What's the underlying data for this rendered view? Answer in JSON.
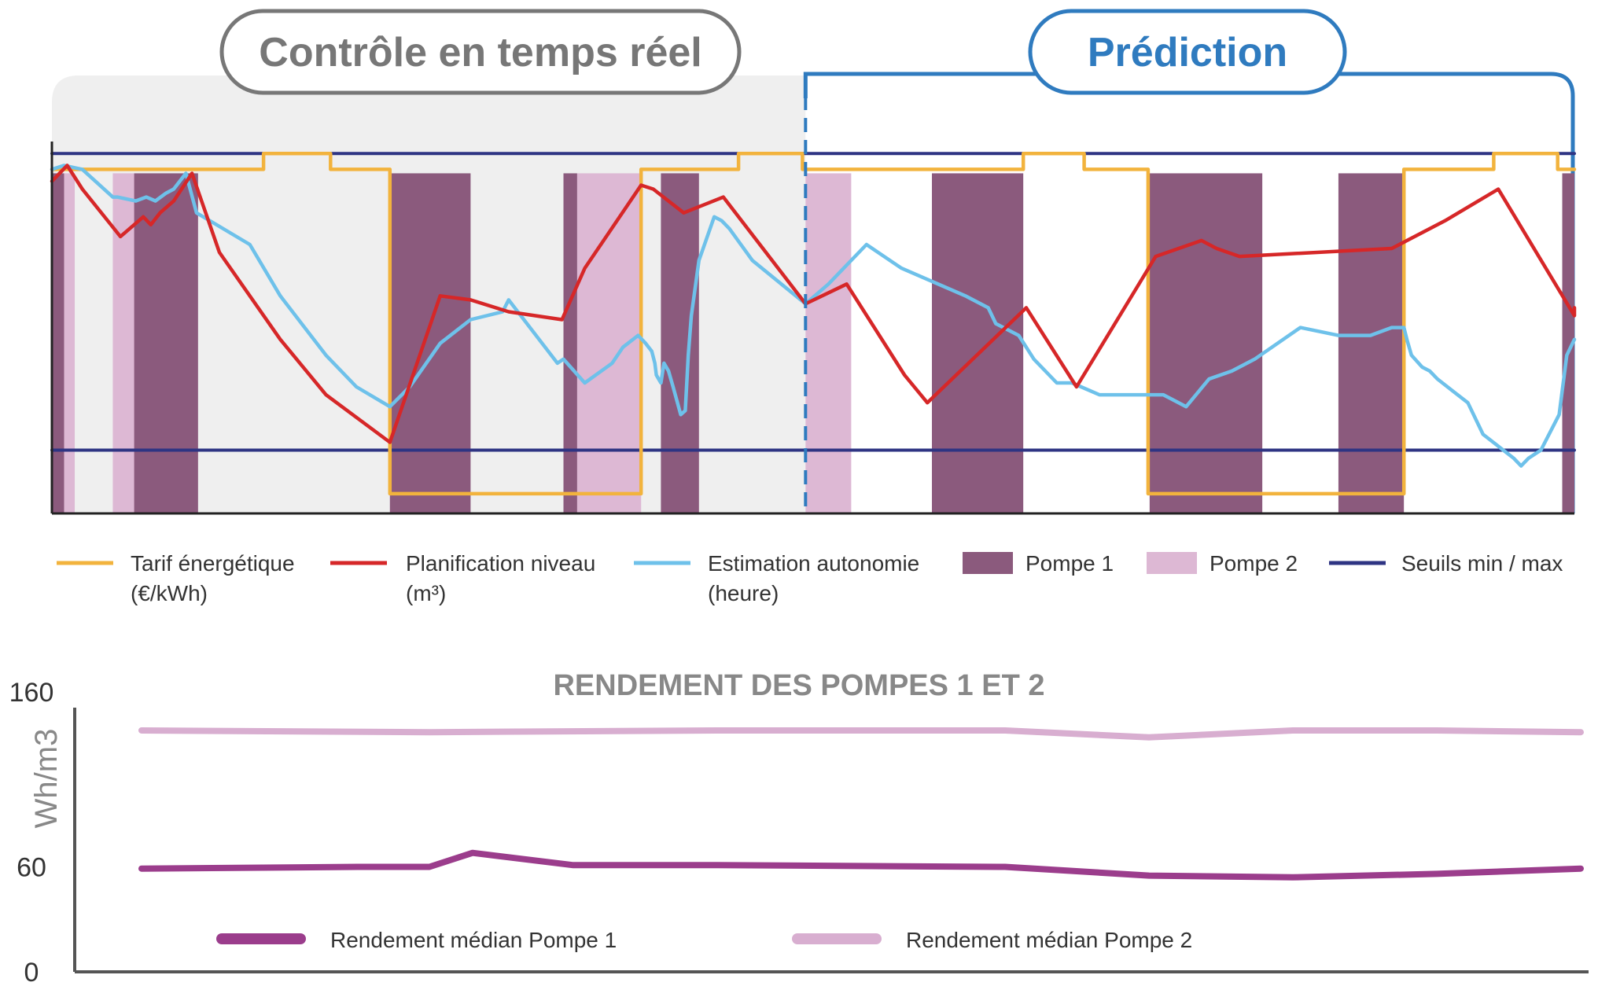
{
  "colors": {
    "tarif": "#f2b33d",
    "planification": "#d62728",
    "estimation": "#6ec1ea",
    "pompe1": "#8b5a7d",
    "pompe2": "#ddb8d4",
    "seuils": "#2e3483",
    "control_bg": "#efefef",
    "control_border": "#777777",
    "prediction_border": "#2f7bbf",
    "rendement_p1": "#9b3d8c",
    "rendement_p2": "#d8aed0"
  },
  "sections": {
    "control_label": "Contrôle en temps réel",
    "prediction_label": "Prédiction"
  },
  "legend": [
    {
      "key": "tarif",
      "line1": "Tarif énergétique",
      "line2": "(€/kWh)",
      "kind": "line"
    },
    {
      "key": "planification",
      "line1": "Planification niveau",
      "line2": "(m³)",
      "kind": "line"
    },
    {
      "key": "estimation",
      "line1": "Estimation autonomie",
      "line2": "(heure)",
      "kind": "line"
    },
    {
      "key": "pompe1",
      "line1": "Pompe 1",
      "line2": "",
      "kind": "box"
    },
    {
      "key": "pompe2",
      "line1": "Pompe 2",
      "line2": "",
      "kind": "box"
    },
    {
      "key": "seuils",
      "line1": "Seuils min / max",
      "line2": "",
      "kind": "line"
    }
  ],
  "chart_data": [
    {
      "type": "line",
      "x_range": [
        0,
        1000
      ],
      "y_range": [
        0,
        100
      ],
      "now_x": 495,
      "series": [
        {
          "key": "tarif",
          "name": "Tarif énergétique (€/kWh)",
          "shape": "step",
          "points": [
            [
              0,
              87
            ],
            [
              139,
              87
            ],
            [
              139,
              91
            ],
            [
              183,
              91
            ],
            [
              183,
              87
            ],
            [
              222,
              87
            ],
            [
              222,
              5
            ],
            [
              387,
              5
            ],
            [
              387,
              87
            ],
            [
              451,
              87
            ],
            [
              451,
              91
            ],
            [
              493,
              91
            ],
            [
              493,
              87
            ],
            [
              638,
              87
            ],
            [
              638,
              91
            ],
            [
              678,
              91
            ],
            [
              678,
              87
            ],
            [
              720,
              87
            ],
            [
              720,
              5
            ],
            [
              888,
              5
            ],
            [
              888,
              87
            ],
            [
              947,
              87
            ],
            [
              947,
              91
            ],
            [
              989,
              91
            ],
            [
              989,
              87
            ],
            [
              1000,
              87
            ]
          ]
        },
        {
          "key": "planification",
          "name": "Planification niveau (m³)",
          "points": [
            [
              0,
              84
            ],
            [
              10,
              88
            ],
            [
              20,
              82
            ],
            [
              45,
              70
            ],
            [
              60,
              75
            ],
            [
              65,
              73
            ],
            [
              71,
              76
            ],
            [
              80,
              79
            ],
            [
              92,
              86
            ],
            [
              110,
              66
            ],
            [
              150,
              44
            ],
            [
              180,
              30
            ],
            [
              222,
              18
            ],
            [
              255,
              55
            ],
            [
              275,
              54
            ],
            [
              300,
              51
            ],
            [
              335,
              49
            ],
            [
              350,
              62
            ],
            [
              387,
              83
            ],
            [
              395,
              82
            ],
            [
              415,
              76
            ],
            [
              441,
              80
            ],
            [
              495,
              53
            ],
            [
              522,
              58
            ],
            [
              560,
              35
            ],
            [
              575,
              28
            ],
            [
              640,
              52
            ],
            [
              673,
              32
            ],
            [
              725,
              65
            ],
            [
              755,
              69
            ],
            [
              765,
              67
            ],
            [
              780,
              65
            ],
            [
              880,
              67
            ],
            [
              915,
              74
            ],
            [
              950,
              82
            ],
            [
              1000,
              50
            ],
            [
              1000,
              52
            ]
          ]
        },
        {
          "key": "estimation",
          "name": "Estimation autonomie (heure)",
          "points": [
            [
              0,
              87
            ],
            [
              8,
              88
            ],
            [
              20,
              87
            ],
            [
              40,
              80
            ],
            [
              43,
              80
            ],
            [
              55,
              79
            ],
            [
              62,
              80
            ],
            [
              68,
              79
            ],
            [
              75,
              81
            ],
            [
              80,
              82
            ],
            [
              88,
              86
            ],
            [
              95,
              76
            ],
            [
              130,
              68
            ],
            [
              150,
              55
            ],
            [
              180,
              40
            ],
            [
              200,
              32
            ],
            [
              222,
              27
            ],
            [
              235,
              32
            ],
            [
              255,
              43
            ],
            [
              275,
              49
            ],
            [
              296,
              51
            ],
            [
              300,
              54
            ],
            [
              332,
              38
            ],
            [
              336,
              39
            ],
            [
              350,
              33
            ],
            [
              368,
              38
            ],
            [
              375,
              42
            ],
            [
              385,
              45
            ],
            [
              390,
              43
            ],
            [
              394,
              41
            ],
            [
              396,
              38
            ],
            [
              397,
              35
            ],
            [
              400,
              33
            ],
            [
              402,
              38
            ],
            [
              405,
              36
            ],
            [
              408,
              32
            ],
            [
              413,
              25
            ],
            [
              416,
              26
            ],
            [
              418,
              40
            ],
            [
              420,
              50
            ],
            [
              425,
              64
            ],
            [
              435,
              75
            ],
            [
              440,
              74
            ],
            [
              445,
              72
            ],
            [
              460,
              64
            ],
            [
              495,
              53
            ],
            [
              510,
              58
            ],
            [
              535,
              68
            ],
            [
              558,
              62
            ],
            [
              600,
              55
            ],
            [
              615,
              52
            ],
            [
              620,
              48
            ],
            [
              635,
              45
            ],
            [
              645,
              39
            ],
            [
              660,
              33
            ],
            [
              670,
              33
            ],
            [
              688,
              30
            ],
            [
              730,
              30
            ],
            [
              745,
              27
            ],
            [
              760,
              34
            ],
            [
              775,
              36
            ],
            [
              790,
              39
            ],
            [
              820,
              47
            ],
            [
              845,
              45
            ],
            [
              866,
              45
            ],
            [
              880,
              47
            ],
            [
              888,
              47
            ],
            [
              890,
              44
            ],
            [
              893,
              40
            ],
            [
              900,
              37
            ],
            [
              905,
              36
            ],
            [
              910,
              34
            ],
            [
              920,
              31
            ],
            [
              930,
              28
            ],
            [
              940,
              20
            ],
            [
              950,
              17
            ],
            [
              960,
              14
            ],
            [
              965,
              12
            ],
            [
              970,
              14
            ],
            [
              978,
              16
            ],
            [
              990,
              25
            ],
            [
              995,
              40
            ],
            [
              1000,
              44
            ]
          ]
        },
        {
          "key": "seuils_max",
          "name": "Seuil max",
          "points": [
            [
              0,
              91
            ],
            [
              1000,
              91
            ]
          ]
        },
        {
          "key": "seuils_min",
          "name": "Seuil min",
          "points": [
            [
              0,
              16
            ],
            [
              1000,
              16
            ]
          ]
        }
      ],
      "bars": {
        "pompe1": [
          [
            0,
            8
          ],
          [
            54,
            96
          ],
          [
            222,
            275
          ],
          [
            336,
            345
          ],
          [
            400,
            425
          ],
          [
            578,
            638
          ],
          [
            721,
            795
          ],
          [
            845,
            888
          ],
          [
            992,
            1000
          ]
        ],
        "pompe2": [
          [
            8,
            15
          ],
          [
            40,
            54
          ],
          [
            345,
            387
          ],
          [
            495,
            525
          ]
        ]
      }
    },
    {
      "type": "line",
      "title": "RENDEMENT DES POMPES 1 ET 2",
      "ylabel": "Wh/m3",
      "ylim": [
        0,
        160
      ],
      "ytick_labels": [
        "160",
        "60",
        "0"
      ],
      "ytick_values": [
        160,
        60,
        0
      ],
      "x_range": [
        0,
        1000
      ],
      "series": [
        {
          "key": "rendement_p1",
          "name": "Rendement médian Pompe 1",
          "points": [
            [
              0,
              59
            ],
            [
              150,
              60
            ],
            [
              200,
              60
            ],
            [
              230,
              68
            ],
            [
              300,
              61
            ],
            [
              400,
              61
            ],
            [
              600,
              60
            ],
            [
              700,
              55
            ],
            [
              800,
              54
            ],
            [
              900,
              56
            ],
            [
              1000,
              59
            ]
          ]
        },
        {
          "key": "rendement_p2",
          "name": "Rendement médian Pompe 2",
          "points": [
            [
              0,
              138
            ],
            [
              200,
              137
            ],
            [
              400,
              138
            ],
            [
              600,
              138
            ],
            [
              700,
              134
            ],
            [
              800,
              138
            ],
            [
              900,
              138
            ],
            [
              1000,
              137
            ]
          ]
        }
      ]
    }
  ]
}
